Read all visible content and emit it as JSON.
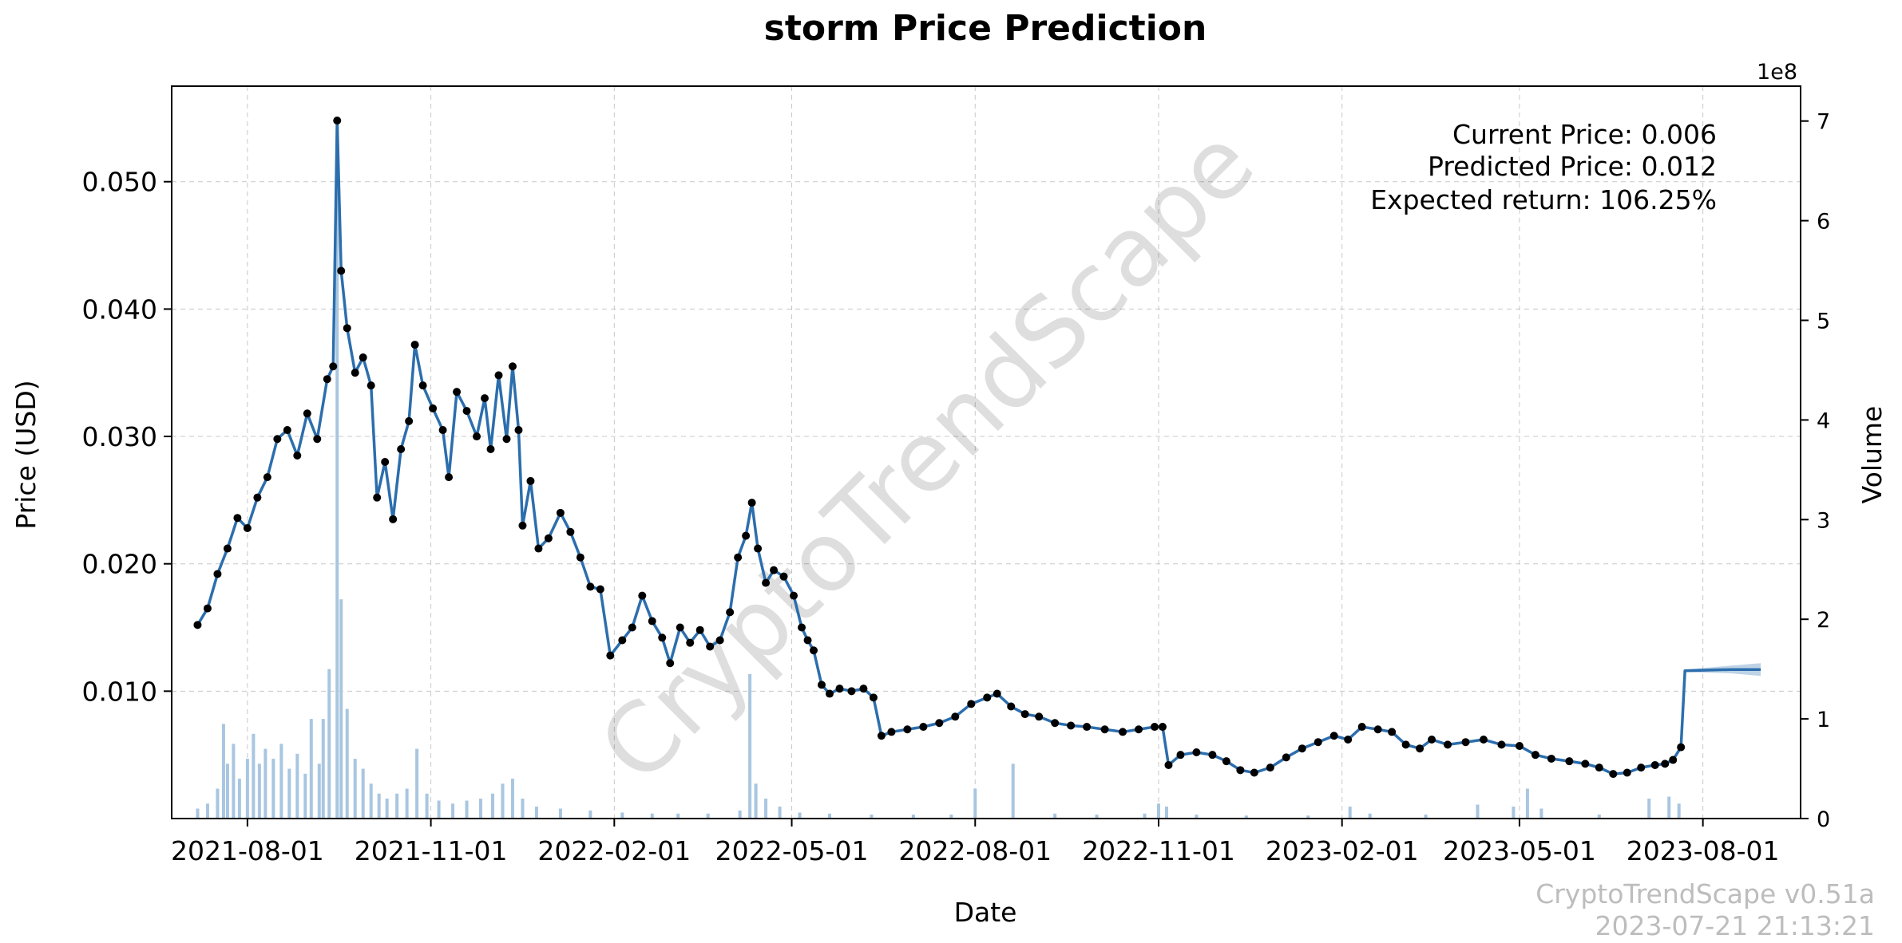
{
  "chart_data": {
    "type": "line",
    "title": "storm Price Prediction",
    "xlabel": "Date",
    "ylabel": "Price (USD)",
    "y2label": "Volume",
    "y2_multiplier_label": "1e8",
    "x_tick_labels": [
      "2021-08-01",
      "2021-11-01",
      "2022-02-01",
      "2022-05-01",
      "2022-08-01",
      "2022-11-01",
      "2023-02-01",
      "2023-05-01",
      "2023-08-01"
    ],
    "x_range": [
      "2021-06-24",
      "2023-09-19"
    ],
    "y_ticks": [
      "0.010",
      "0.020",
      "0.030",
      "0.040",
      "0.050"
    ],
    "ylim": [
      0.0,
      0.0575
    ],
    "y2_ticks": [
      "0",
      "1",
      "2",
      "3",
      "4",
      "5",
      "6",
      "7"
    ],
    "y2lim": [
      0,
      7.35
    ],
    "grid": true,
    "price_series": {
      "name": "Price",
      "color": "#2c6ead",
      "marker_color": "#000000",
      "points": [
        [
          "2021-07-07",
          0.0152
        ],
        [
          "2021-07-12",
          0.0165
        ],
        [
          "2021-07-17",
          0.0192
        ],
        [
          "2021-07-22",
          0.0212
        ],
        [
          "2021-07-27",
          0.0236
        ],
        [
          "2021-08-01",
          0.0228
        ],
        [
          "2021-08-06",
          0.0252
        ],
        [
          "2021-08-11",
          0.0268
        ],
        [
          "2021-08-16",
          0.0298
        ],
        [
          "2021-08-21",
          0.0305
        ],
        [
          "2021-08-26",
          0.0285
        ],
        [
          "2021-08-31",
          0.0318
        ],
        [
          "2021-09-05",
          0.0298
        ],
        [
          "2021-09-10",
          0.0345
        ],
        [
          "2021-09-13",
          0.0355
        ],
        [
          "2021-09-15",
          0.0548
        ],
        [
          "2021-09-17",
          0.043
        ],
        [
          "2021-09-20",
          0.0385
        ],
        [
          "2021-09-24",
          0.035
        ],
        [
          "2021-09-28",
          0.0362
        ],
        [
          "2021-10-02",
          0.034
        ],
        [
          "2021-10-05",
          0.0252
        ],
        [
          "2021-10-09",
          0.028
        ],
        [
          "2021-10-13",
          0.0235
        ],
        [
          "2021-10-17",
          0.029
        ],
        [
          "2021-10-21",
          0.0312
        ],
        [
          "2021-10-24",
          0.0372
        ],
        [
          "2021-10-28",
          0.034
        ],
        [
          "2021-11-02",
          0.0322
        ],
        [
          "2021-11-07",
          0.0305
        ],
        [
          "2021-11-10",
          0.0268
        ],
        [
          "2021-11-14",
          0.0335
        ],
        [
          "2021-11-19",
          0.032
        ],
        [
          "2021-11-24",
          0.03
        ],
        [
          "2021-11-28",
          0.033
        ],
        [
          "2021-12-01",
          0.029
        ],
        [
          "2021-12-05",
          0.0348
        ],
        [
          "2021-12-09",
          0.0298
        ],
        [
          "2021-12-12",
          0.0355
        ],
        [
          "2021-12-15",
          0.0305
        ],
        [
          "2021-12-17",
          0.023
        ],
        [
          "2021-12-21",
          0.0265
        ],
        [
          "2021-12-25",
          0.0212
        ],
        [
          "2021-12-30",
          0.022
        ],
        [
          "2022-01-05",
          0.024
        ],
        [
          "2022-01-10",
          0.0225
        ],
        [
          "2022-01-15",
          0.0205
        ],
        [
          "2022-01-20",
          0.0182
        ],
        [
          "2022-01-25",
          0.018
        ],
        [
          "2022-01-30",
          0.0128
        ],
        [
          "2022-02-05",
          0.014
        ],
        [
          "2022-02-10",
          0.015
        ],
        [
          "2022-02-15",
          0.0175
        ],
        [
          "2022-02-20",
          0.0155
        ],
        [
          "2022-02-25",
          0.0142
        ],
        [
          "2022-03-01",
          0.0122
        ],
        [
          "2022-03-06",
          0.015
        ],
        [
          "2022-03-11",
          0.0138
        ],
        [
          "2022-03-16",
          0.0148
        ],
        [
          "2022-03-21",
          0.0135
        ],
        [
          "2022-03-26",
          0.014
        ],
        [
          "2022-03-31",
          0.0162
        ],
        [
          "2022-04-04",
          0.0205
        ],
        [
          "2022-04-08",
          0.0222
        ],
        [
          "2022-04-11",
          0.0248
        ],
        [
          "2022-04-14",
          0.0212
        ],
        [
          "2022-04-18",
          0.0185
        ],
        [
          "2022-04-22",
          0.0195
        ],
        [
          "2022-04-27",
          0.019
        ],
        [
          "2022-05-02",
          0.0175
        ],
        [
          "2022-05-06",
          0.015
        ],
        [
          "2022-05-09",
          0.014
        ],
        [
          "2022-05-12",
          0.0132
        ],
        [
          "2022-05-16",
          0.0105
        ],
        [
          "2022-05-20",
          0.0098
        ],
        [
          "2022-05-25",
          0.0102
        ],
        [
          "2022-05-31",
          0.01
        ],
        [
          "2022-06-06",
          0.0102
        ],
        [
          "2022-06-11",
          0.0095
        ],
        [
          "2022-06-15",
          0.0065
        ],
        [
          "2022-06-20",
          0.0068
        ],
        [
          "2022-06-28",
          0.007
        ],
        [
          "2022-07-06",
          0.0072
        ],
        [
          "2022-07-14",
          0.0075
        ],
        [
          "2022-07-22",
          0.008
        ],
        [
          "2022-07-30",
          0.009
        ],
        [
          "2022-08-07",
          0.0095
        ],
        [
          "2022-08-12",
          0.0098
        ],
        [
          "2022-08-19",
          0.0088
        ],
        [
          "2022-08-26",
          0.0082
        ],
        [
          "2022-09-02",
          0.008
        ],
        [
          "2022-09-10",
          0.0075
        ],
        [
          "2022-09-18",
          0.0073
        ],
        [
          "2022-09-26",
          0.0072
        ],
        [
          "2022-10-05",
          0.007
        ],
        [
          "2022-10-14",
          0.0068
        ],
        [
          "2022-10-22",
          0.007
        ],
        [
          "2022-10-30",
          0.0072
        ],
        [
          "2022-11-03",
          0.0072
        ],
        [
          "2022-11-06",
          0.0042
        ],
        [
          "2022-11-12",
          0.005
        ],
        [
          "2022-11-20",
          0.0052
        ],
        [
          "2022-11-28",
          0.005
        ],
        [
          "2022-12-05",
          0.0045
        ],
        [
          "2022-12-12",
          0.0038
        ],
        [
          "2022-12-19",
          0.0036
        ],
        [
          "2022-12-27",
          0.004
        ],
        [
          "2023-01-04",
          0.0048
        ],
        [
          "2023-01-12",
          0.0055
        ],
        [
          "2023-01-20",
          0.006
        ],
        [
          "2023-01-28",
          0.0065
        ],
        [
          "2023-02-04",
          0.0062
        ],
        [
          "2023-02-11",
          0.0072
        ],
        [
          "2023-02-19",
          0.007
        ],
        [
          "2023-02-26",
          0.0068
        ],
        [
          "2023-03-05",
          0.0058
        ],
        [
          "2023-03-12",
          0.0055
        ],
        [
          "2023-03-18",
          0.0062
        ],
        [
          "2023-03-26",
          0.0058
        ],
        [
          "2023-04-04",
          0.006
        ],
        [
          "2023-04-13",
          0.0062
        ],
        [
          "2023-04-22",
          0.0058
        ],
        [
          "2023-05-01",
          0.0057
        ],
        [
          "2023-05-09",
          0.005
        ],
        [
          "2023-05-17",
          0.0047
        ],
        [
          "2023-05-26",
          0.0045
        ],
        [
          "2023-06-03",
          0.0043
        ],
        [
          "2023-06-10",
          0.004
        ],
        [
          "2023-06-17",
          0.0035
        ],
        [
          "2023-06-24",
          0.0036
        ],
        [
          "2023-07-01",
          0.004
        ],
        [
          "2023-07-08",
          0.0042
        ],
        [
          "2023-07-13",
          0.0043
        ],
        [
          "2023-07-17",
          0.0046
        ],
        [
          "2023-07-21",
          0.0056
        ],
        [
          "2023-07-23",
          0.0116
        ],
        [
          "2023-08-15",
          0.0117
        ],
        [
          "2023-08-30",
          0.0117
        ]
      ]
    },
    "prediction_band": {
      "color": "#2c6ead",
      "upper": [
        [
          "2023-07-23",
          0.0117
        ],
        [
          "2023-08-15",
          0.012
        ],
        [
          "2023-08-30",
          0.0122
        ]
      ],
      "lower": [
        [
          "2023-07-23",
          0.0115
        ],
        [
          "2023-08-15",
          0.0114
        ],
        [
          "2023-08-30",
          0.0112
        ]
      ]
    },
    "volume_series": {
      "name": "Volume",
      "color": "#a9c6e0",
      "bars": [
        [
          "2021-07-07",
          0.1
        ],
        [
          "2021-07-12",
          0.15
        ],
        [
          "2021-07-17",
          0.3
        ],
        [
          "2021-07-20",
          0.95
        ],
        [
          "2021-07-22",
          0.55
        ],
        [
          "2021-07-25",
          0.75
        ],
        [
          "2021-07-28",
          0.4
        ],
        [
          "2021-08-01",
          0.6
        ],
        [
          "2021-08-04",
          0.85
        ],
        [
          "2021-08-07",
          0.55
        ],
        [
          "2021-08-10",
          0.7
        ],
        [
          "2021-08-14",
          0.6
        ],
        [
          "2021-08-18",
          0.75
        ],
        [
          "2021-08-22",
          0.5
        ],
        [
          "2021-08-26",
          0.65
        ],
        [
          "2021-08-30",
          0.45
        ],
        [
          "2021-09-02",
          1.0
        ],
        [
          "2021-09-06",
          0.55
        ],
        [
          "2021-09-08",
          1.0
        ],
        [
          "2021-09-11",
          1.5
        ],
        [
          "2021-09-15",
          7.0
        ],
        [
          "2021-09-17",
          2.2
        ],
        [
          "2021-09-20",
          1.1
        ],
        [
          "2021-09-24",
          0.6
        ],
        [
          "2021-09-28",
          0.5
        ],
        [
          "2021-10-02",
          0.35
        ],
        [
          "2021-10-06",
          0.25
        ],
        [
          "2021-10-10",
          0.2
        ],
        [
          "2021-10-15",
          0.25
        ],
        [
          "2021-10-20",
          0.3
        ],
        [
          "2021-10-25",
          0.7
        ],
        [
          "2021-10-30",
          0.25
        ],
        [
          "2021-11-05",
          0.18
        ],
        [
          "2021-11-12",
          0.15
        ],
        [
          "2021-11-19",
          0.18
        ],
        [
          "2021-11-26",
          0.2
        ],
        [
          "2021-12-02",
          0.25
        ],
        [
          "2021-12-07",
          0.35
        ],
        [
          "2021-12-12",
          0.4
        ],
        [
          "2021-12-17",
          0.2
        ],
        [
          "2021-12-24",
          0.12
        ],
        [
          "2022-01-05",
          0.1
        ],
        [
          "2022-01-20",
          0.08
        ],
        [
          "2022-02-05",
          0.06
        ],
        [
          "2022-02-20",
          0.05
        ],
        [
          "2022-03-05",
          0.05
        ],
        [
          "2022-03-20",
          0.05
        ],
        [
          "2022-04-05",
          0.08
        ],
        [
          "2022-04-10",
          1.45
        ],
        [
          "2022-04-13",
          0.35
        ],
        [
          "2022-04-18",
          0.2
        ],
        [
          "2022-04-25",
          0.12
        ],
        [
          "2022-05-05",
          0.06
        ],
        [
          "2022-05-20",
          0.05
        ],
        [
          "2022-06-10",
          0.04
        ],
        [
          "2022-07-01",
          0.04
        ],
        [
          "2022-07-20",
          0.04
        ],
        [
          "2022-08-01",
          0.3
        ],
        [
          "2022-08-20",
          0.55
        ],
        [
          "2022-09-10",
          0.05
        ],
        [
          "2022-10-01",
          0.04
        ],
        [
          "2022-10-25",
          0.05
        ],
        [
          "2022-11-01",
          0.15
        ],
        [
          "2022-11-05",
          0.12
        ],
        [
          "2022-11-20",
          0.04
        ],
        [
          "2022-12-15",
          0.03
        ],
        [
          "2023-01-15",
          0.03
        ],
        [
          "2023-02-05",
          0.12
        ],
        [
          "2023-02-15",
          0.05
        ],
        [
          "2023-03-15",
          0.04
        ],
        [
          "2023-04-10",
          0.14
        ],
        [
          "2023-04-28",
          0.12
        ],
        [
          "2023-05-05",
          0.3
        ],
        [
          "2023-05-12",
          0.1
        ],
        [
          "2023-06-10",
          0.04
        ],
        [
          "2023-07-05",
          0.2
        ],
        [
          "2023-07-15",
          0.22
        ],
        [
          "2023-07-20",
          0.15
        ]
      ]
    },
    "annotations": [
      "Current Price: 0.006",
      "Predicted Price: 0.012",
      "Expected return: 106.25%"
    ],
    "watermark": "CryptoTrendScape",
    "footer": [
      "CryptoTrendScape v0.51a",
      "2023-07-21 21:13:21"
    ]
  }
}
